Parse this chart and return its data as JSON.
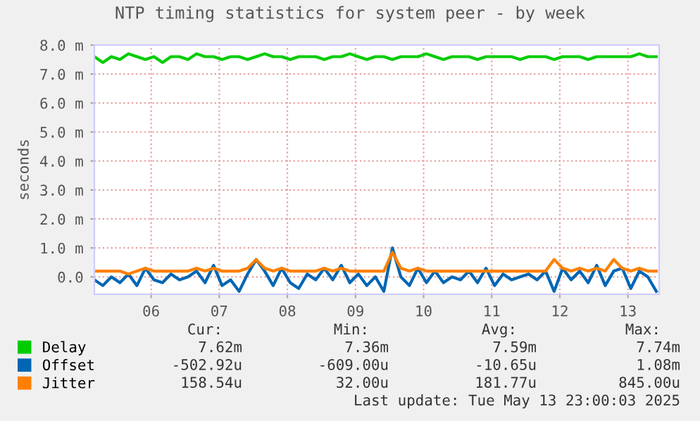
{
  "chart_data": {
    "type": "line",
    "title": "NTP timing statistics for system peer - by week",
    "ylabel": "seconds",
    "x": [
      "2025-05-05T16:00",
      "2025-05-05T19:00",
      "2025-05-05T22:00",
      "2025-05-06T01:00",
      "2025-05-06T04:00",
      "2025-05-06T07:00",
      "2025-05-06T10:00",
      "2025-05-06T13:00",
      "2025-05-06T16:00",
      "2025-05-06T19:00",
      "2025-05-06T22:00",
      "2025-05-07T01:00",
      "2025-05-07T04:00",
      "2025-05-07T07:00",
      "2025-05-07T10:00",
      "2025-05-07T13:00",
      "2025-05-07T16:00",
      "2025-05-07T19:00",
      "2025-05-07T22:00",
      "2025-05-08T01:00",
      "2025-05-08T04:00",
      "2025-05-08T07:00",
      "2025-05-08T10:00",
      "2025-05-08T13:00",
      "2025-05-08T16:00",
      "2025-05-08T19:00",
      "2025-05-08T22:00",
      "2025-05-09T01:00",
      "2025-05-09T04:00",
      "2025-05-09T07:00",
      "2025-05-09T10:00",
      "2025-05-09T13:00",
      "2025-05-09T16:00",
      "2025-05-09T19:00",
      "2025-05-09T22:00",
      "2025-05-10T01:00",
      "2025-05-10T04:00",
      "2025-05-10T07:00",
      "2025-05-10T10:00",
      "2025-05-10T13:00",
      "2025-05-10T16:00",
      "2025-05-10T19:00",
      "2025-05-10T22:00",
      "2025-05-11T01:00",
      "2025-05-11T04:00",
      "2025-05-11T07:00",
      "2025-05-11T10:00",
      "2025-05-11T13:00",
      "2025-05-11T16:00",
      "2025-05-11T19:00",
      "2025-05-11T22:00",
      "2025-05-12T01:00",
      "2025-05-12T04:00",
      "2025-05-12T07:00",
      "2025-05-12T10:00",
      "2025-05-12T13:00",
      "2025-05-12T16:00",
      "2025-05-12T19:00",
      "2025-05-12T22:00",
      "2025-05-13T01:00",
      "2025-05-13T04:00",
      "2025-05-13T07:00",
      "2025-05-13T10:00",
      "2025-05-13T13:00",
      "2025-05-13T16:00",
      "2025-05-13T19:00",
      "2025-05-13T22:00"
    ],
    "series": [
      {
        "name": "Delay",
        "color": "#00cc00",
        "values": [
          7.6,
          7.4,
          7.6,
          7.5,
          7.7,
          7.6,
          7.5,
          7.6,
          7.4,
          7.6,
          7.6,
          7.5,
          7.7,
          7.6,
          7.6,
          7.5,
          7.6,
          7.6,
          7.5,
          7.6,
          7.7,
          7.6,
          7.6,
          7.5,
          7.6,
          7.6,
          7.6,
          7.5,
          7.6,
          7.6,
          7.7,
          7.6,
          7.5,
          7.6,
          7.6,
          7.5,
          7.6,
          7.6,
          7.6,
          7.7,
          7.6,
          7.5,
          7.6,
          7.6,
          7.6,
          7.5,
          7.6,
          7.6,
          7.6,
          7.6,
          7.5,
          7.6,
          7.6,
          7.6,
          7.5,
          7.6,
          7.6,
          7.6,
          7.5,
          7.6,
          7.6,
          7.6,
          7.6,
          7.6,
          7.7,
          7.6,
          7.6
        ]
      },
      {
        "name": "Offset",
        "color": "#0066b3",
        "values": [
          -0.1,
          -0.3,
          0.0,
          -0.2,
          0.1,
          -0.3,
          0.3,
          -0.1,
          -0.2,
          0.1,
          -0.1,
          0.0,
          0.2,
          -0.2,
          0.4,
          -0.3,
          -0.1,
          -0.5,
          0.1,
          0.6,
          0.2,
          -0.3,
          0.3,
          -0.2,
          -0.4,
          0.1,
          -0.1,
          0.3,
          -0.1,
          0.4,
          -0.2,
          0.1,
          -0.3,
          0.0,
          -0.5,
          1.0,
          0.0,
          -0.3,
          0.3,
          -0.2,
          0.2,
          -0.2,
          0.0,
          -0.1,
          0.2,
          -0.2,
          0.3,
          -0.3,
          0.1,
          -0.1,
          0.0,
          0.1,
          -0.1,
          0.2,
          -0.5,
          0.3,
          -0.1,
          0.2,
          -0.2,
          0.4,
          -0.3,
          0.2,
          0.3,
          -0.4,
          0.2,
          0.0,
          -0.5
        ]
      },
      {
        "name": "Jitter",
        "color": "#ff8000",
        "values": [
          0.2,
          0.2,
          0.2,
          0.2,
          0.1,
          0.2,
          0.3,
          0.2,
          0.2,
          0.2,
          0.2,
          0.2,
          0.3,
          0.2,
          0.3,
          0.2,
          0.2,
          0.2,
          0.3,
          0.6,
          0.3,
          0.2,
          0.3,
          0.2,
          0.2,
          0.2,
          0.2,
          0.3,
          0.2,
          0.3,
          0.2,
          0.2,
          0.2,
          0.2,
          0.2,
          0.85,
          0.3,
          0.2,
          0.3,
          0.2,
          0.2,
          0.2,
          0.2,
          0.2,
          0.2,
          0.2,
          0.2,
          0.2,
          0.2,
          0.2,
          0.2,
          0.2,
          0.2,
          0.2,
          0.6,
          0.3,
          0.2,
          0.3,
          0.2,
          0.3,
          0.2,
          0.6,
          0.3,
          0.2,
          0.3,
          0.2,
          0.2
        ]
      }
    ],
    "xlim": [
      "2025-05-05T16:00",
      "2025-05-13T23:00"
    ],
    "xticks": [
      {
        "value": "2025-05-06T12:00",
        "label": "06"
      },
      {
        "value": "2025-05-07T12:00",
        "label": "07"
      },
      {
        "value": "2025-05-08T12:00",
        "label": "08"
      },
      {
        "value": "2025-05-09T12:00",
        "label": "09"
      },
      {
        "value": "2025-05-10T12:00",
        "label": "10"
      },
      {
        "value": "2025-05-11T12:00",
        "label": "11"
      },
      {
        "value": "2025-05-12T12:00",
        "label": "12"
      },
      {
        "value": "2025-05-13T12:00",
        "label": "13"
      }
    ],
    "ylim": [
      -0.6,
      8
    ],
    "yticks": [
      {
        "value": 0,
        "label": "0.0"
      },
      {
        "value": 1,
        "label": "1.0 m"
      },
      {
        "value": 2,
        "label": "2.0 m"
      },
      {
        "value": 3,
        "label": "3.0 m"
      },
      {
        "value": 4,
        "label": "4.0 m"
      },
      {
        "value": 5,
        "label": "5.0 m"
      },
      {
        "value": 6,
        "label": "6.0 m"
      },
      {
        "value": 7,
        "label": "7.0 m"
      },
      {
        "value": 8,
        "label": "8.0 m"
      }
    ],
    "grid": true,
    "legend": "bottom left",
    "marker": "none",
    "line_style": "solid",
    "annotations": [
      "Cur:",
      "Min:",
      "Avg:",
      "Max:",
      "7.62m",
      "7.36m",
      "7.59m",
      "7.74m",
      "-502.92u",
      "-609.00u",
      "-10.65u",
      "1.08m",
      "158.54u",
      "32.00u",
      "181.77u",
      "845.00u",
      "Last update: Tue May 13 23:00:03 2025"
    ]
  }
}
